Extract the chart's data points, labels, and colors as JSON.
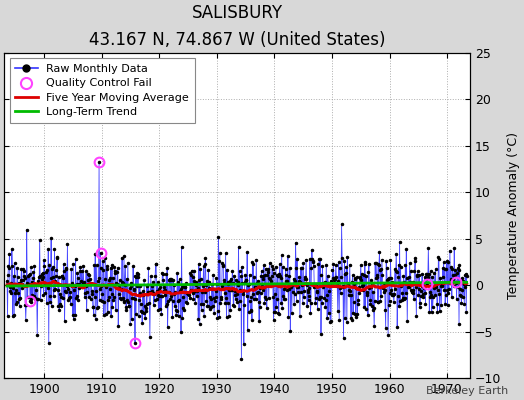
{
  "title": "SALISBURY",
  "subtitle": "43.167 N, 74.867 W (United States)",
  "ylabel_right": "Temperature Anomaly (°C)",
  "credit": "Berkeley Earth",
  "xmin": 1893,
  "xmax": 1974,
  "ymin": -10,
  "ymax": 25,
  "yticks": [
    -10,
    -5,
    0,
    5,
    10,
    15,
    20,
    25
  ],
  "xticks": [
    1900,
    1910,
    1920,
    1930,
    1940,
    1950,
    1960,
    1970
  ],
  "raw_line_color": "#3333ff",
  "raw_marker_color": "#000000",
  "moving_avg_color": "#dd0000",
  "trend_color": "#00bb00",
  "qc_fail_color": "#ff44ff",
  "fig_background_color": "#d8d8d8",
  "plot_background_color": "#ffffff",
  "seed": 17
}
